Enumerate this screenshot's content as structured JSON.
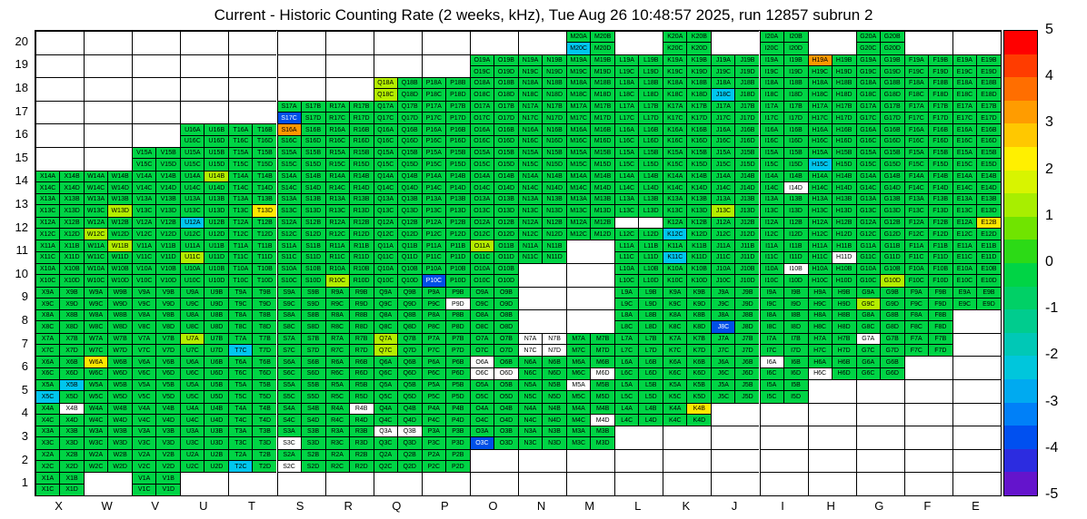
{
  "title": "Current - Historic Counting Rate (2 weeks, kHz), Tue Aug 26 10:48:57 2025, run 12857 subrun 2",
  "chart_data": {
    "type": "heatmap",
    "title": "Current - Historic Counting Rate (2 weeks, kHz), Tue Aug 26 10:48:57 2025, run 12857 subrun 2",
    "x_categories": [
      "X",
      "W",
      "V",
      "U",
      "T",
      "S",
      "R",
      "Q",
      "P",
      "O",
      "N",
      "M",
      "L",
      "K",
      "J",
      "I",
      "H",
      "G",
      "F",
      "E"
    ],
    "y_categories": [
      20,
      19,
      18,
      17,
      16,
      15,
      14,
      13,
      12,
      11,
      10,
      9,
      8,
      7,
      6,
      5,
      4,
      3,
      2,
      1
    ],
    "subcell_order": [
      "A",
      "B",
      "C",
      "D"
    ],
    "colorbar": {
      "min": -5,
      "max": 5,
      "ticks": [
        5,
        4,
        3,
        2,
        1,
        0,
        -1,
        -2,
        -3,
        -4,
        -5
      ]
    },
    "code_values": {
      "g": 0,
      "l": 1,
      "y": 2,
      "o": 3.5,
      "c": -2.5,
      "b": -4,
      "w": null,
      "x": null
    },
    "cells": {
      "20": {
        "M": "ggcg",
        "K": "gggg",
        "I": "gggg",
        "G": "gggg"
      },
      "19": {
        "O": "gggg",
        "N": "gggg",
        "M": "gggg",
        "L": "gggg",
        "K": "gggg",
        "J": "gggg",
        "I": "gggg",
        "H": "oggg",
        "G": "gggg",
        "F": "gggg",
        "E": "gggg"
      },
      "18": {
        "Q": "lglg",
        "P": "gggg",
        "O": "gggg",
        "N": "gggg",
        "M": "gggg",
        "L": "gggg",
        "K": "gggg",
        "J": "ggcg",
        "I": "gggg",
        "H": "gggg",
        "G": "gggg",
        "F": "gggg",
        "E": "gggg"
      },
      "17": {
        "S": "ggbg",
        "R": "gggg",
        "Q": "gggg",
        "P": "gggg",
        "O": "gggg",
        "N": "gggg",
        "M": "gggg",
        "L": "gggg",
        "K": "gggg",
        "J": "gggg",
        "I": "gggg",
        "H": "gggg",
        "G": "gggg",
        "F": "gggg",
        "E": "gggg"
      },
      "16": {
        "U": "gggg",
        "T": "gggg",
        "S": "oggg",
        "R": "gggg",
        "Q": "gggg",
        "P": "gggg",
        "O": "gggg",
        "N": "gggg",
        "M": "gggg",
        "L": "gggg",
        "K": "gggg",
        "J": "gggg",
        "I": "gggg",
        "H": "gggg",
        "G": "gggg",
        "F": "gggg",
        "E": "gggg"
      },
      "15": {
        "V": "gggg",
        "U": "gggg",
        "T": "gggg",
        "S": "gggg",
        "R": "gggg",
        "Q": "gggg",
        "P": "gggg",
        "O": "gggg",
        "N": "gggg",
        "M": "gggg",
        "L": "gggg",
        "K": "gggg",
        "J": "gggg",
        "I": "gggg",
        "H": "ggcg",
        "G": "gggg",
        "F": "gggg",
        "E": "gggg"
      },
      "14": {
        "X": "gggg",
        "W": "gggg",
        "V": "gggg",
        "U": "glgg",
        "T": "gggg",
        "S": "gggg",
        "R": "gggg",
        "Q": "gggg",
        "P": "gggg",
        "O": "gggg",
        "N": "gggg",
        "M": "gggg",
        "L": "gggg",
        "K": "gggg",
        "J": "gggg",
        "I": "gggw",
        "H": "gggg",
        "G": "gggg",
        "F": "gggg",
        "E": "gggg"
      },
      "13": {
        "X": "gggg",
        "W": "gggl",
        "V": "gggg",
        "U": "gggg",
        "T": "gggy",
        "S": "gggg",
        "R": "gggg",
        "Q": "gggg",
        "P": "gggg",
        "O": "gggg",
        "N": "gggg",
        "M": "gggg",
        "L": "gggg",
        "K": "gggg",
        "J": "gglg",
        "I": "gggg",
        "H": "gggg",
        "G": "gggg",
        "F": "gggg",
        "E": "gggg"
      },
      "12": {
        "X": "gggg",
        "W": "gglg",
        "V": "gggg",
        "U": "cggg",
        "T": "gggg",
        "S": "gggg",
        "R": "gggg",
        "Q": "gggg",
        "P": "gggg",
        "O": "gggg",
        "N": "gggg",
        "M": "gggg",
        "L": "xxgg",
        "K": "ggcg",
        "J": "gggg",
        "I": "gggg",
        "H": "gggg",
        "G": "gggg",
        "F": "gggg",
        "E": "gygg"
      },
      "11": {
        "X": "gggg",
        "W": "glgg",
        "V": "gggg",
        "U": "gglg",
        "T": "gggg",
        "S": "gggg",
        "R": "gggg",
        "Q": "gggg",
        "P": "gggg",
        "O": "lggg",
        "N": "gggg",
        "L": "gggg",
        "K": "ggcg",
        "J": "gggg",
        "I": "gggg",
        "H": "gggw",
        "G": "gggg",
        "F": "gggg",
        "E": "gggg"
      },
      "10": {
        "X": "gggg",
        "W": "gggg",
        "V": "gggg",
        "U": "gggg",
        "T": "gggg",
        "S": "gggg",
        "R": "gglg",
        "Q": "gggg",
        "P": "ggbg",
        "O": "gggg",
        "L": "gggg",
        "K": "gggg",
        "J": "gggg",
        "I": "gwgg",
        "H": "gggg",
        "G": "gggl",
        "F": "gggg",
        "E": "gggg"
      },
      "9": {
        "X": "gggg",
        "W": "gggg",
        "V": "gggg",
        "U": "gggg",
        "T": "gggg",
        "S": "gggg",
        "R": "gggg",
        "Q": "gggg",
        "P": "gggw",
        "O": "gggg",
        "L": "gggg",
        "K": "gggg",
        "J": "gggg",
        "I": "gggg",
        "H": "gggg",
        "G": "gglg",
        "F": "gggg",
        "E": "gggg"
      },
      "8": {
        "X": "gggg",
        "W": "gggg",
        "V": "gggg",
        "U": "gggg",
        "T": "gggg",
        "S": "gggg",
        "R": "gggg",
        "Q": "gggg",
        "P": "gggg",
        "O": "gggg",
        "L": "gggg",
        "K": "gggg",
        "J": "ggbg",
        "I": "gggg",
        "H": "gggg",
        "G": "gggg",
        "F": "gggg"
      },
      "7": {
        "X": "gggg",
        "W": "gggg",
        "V": "gggg",
        "U": "lggg",
        "T": "ggcg",
        "S": "gggg",
        "R": "gggg",
        "Q": "lglg",
        "P": "gggg",
        "O": "gggg",
        "N": "wwww",
        "M": "gggg",
        "L": "gggg",
        "K": "gggg",
        "J": "gggg",
        "I": "gggg",
        "H": "gggg",
        "G": "wggg",
        "F": "gggg"
      },
      "6": {
        "X": "gggg",
        "W": "yggg",
        "V": "gggg",
        "U": "gggg",
        "T": "gggg",
        "S": "gggg",
        "R": "gggg",
        "Q": "gggg",
        "P": "gggg",
        "O": "wgww",
        "N": "gggg",
        "M": "gggw",
        "L": "gggg",
        "K": "gggg",
        "J": "gggg",
        "I": "wggg",
        "H": "ggwg",
        "G": "gggg"
      },
      "5": {
        "X": "gccg",
        "W": "gggg",
        "V": "gggg",
        "U": "gggg",
        "T": "gggg",
        "S": "gggg",
        "R": "gggg",
        "Q": "gggg",
        "P": "gggg",
        "O": "gggg",
        "N": "gggg",
        "M": "wggg",
        "L": "gggg",
        "K": "gggg",
        "J": "gggg",
        "I": "gggg"
      },
      "4": {
        "X": "gwgg",
        "W": "gggg",
        "V": "gggg",
        "U": "gggg",
        "T": "gggg",
        "S": "gggg",
        "R": "gwgg",
        "Q": "gggg",
        "P": "gggg",
        "O": "gggg",
        "N": "gggg",
        "M": "gggw",
        "L": "gggg",
        "K": "gygg"
      },
      "3": {
        "X": "gggg",
        "W": "gggg",
        "V": "gggg",
        "U": "gggg",
        "T": "gggg",
        "S": "ggwg",
        "R": "gggg",
        "Q": "wwgg",
        "P": "gggg",
        "O": "ggbg",
        "N": "gggg",
        "M": "gggg"
      },
      "2": {
        "X": "gggg",
        "W": "gggg",
        "V": "gggg",
        "U": "gggg",
        "T": "ggcg",
        "S": "ggwg",
        "R": "gggg",
        "Q": "gggg",
        "P": "gggg"
      },
      "1": {
        "X": "gggg",
        "V": "gggg"
      }
    }
  },
  "palette": {
    "g": "#00d445",
    "l": "#b4ee00",
    "y": "#ffe800",
    "o": "#ff9800",
    "c": "#00c6ee",
    "b": "#0050e8",
    "w": "#ffffff",
    "x": "#ffffff"
  },
  "colorbar_bands": [
    "#ff0000",
    "#ff3c00",
    "#ff6e00",
    "#ff9c00",
    "#ffc800",
    "#fff000",
    "#d8f400",
    "#a8ee00",
    "#70e400",
    "#2cda16",
    "#00d445",
    "#00d066",
    "#00cc8e",
    "#00c8b6",
    "#00c6dc",
    "#00aaf0",
    "#0080f8",
    "#0050f0",
    "#2c2ce0",
    "#6414cc"
  ]
}
